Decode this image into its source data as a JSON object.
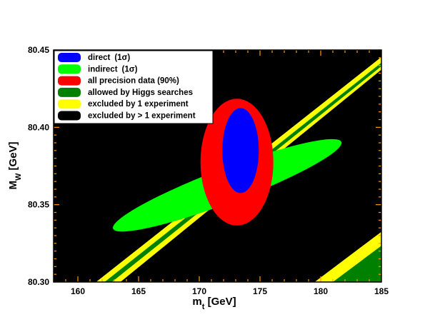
{
  "chart_data": {
    "type": "scatter",
    "title": "",
    "xlabel": "m",
    "xlabel_sub": "t",
    "xlabel_unit": " [GeV]",
    "ylabel": "M",
    "ylabel_sub": "W",
    "ylabel_unit": " [GeV]",
    "xlim": [
      158,
      185
    ],
    "ylim": [
      80.3,
      80.45
    ],
    "x_ticks": [
      160,
      165,
      170,
      175,
      180,
      185
    ],
    "x_tick_labels": [
      "160",
      "165",
      "170",
      "175",
      "180",
      "185"
    ],
    "y_ticks": [
      80.3,
      80.35,
      80.4,
      80.45
    ],
    "y_tick_labels": [
      "80.30",
      "80.35",
      "80.40",
      "80.45"
    ],
    "background_color": "#000000",
    "legend_position": "top-left",
    "legend": [
      {
        "name": "direct",
        "suffix": "(1σ)",
        "color": "#0000ff"
      },
      {
        "name": "indirect",
        "suffix": "(1σ)",
        "color": "#00ff00"
      },
      {
        "name": "all precision data (90%)",
        "suffix": "",
        "color": "#ff0000"
      },
      {
        "name": "allowed by Higgs searches",
        "suffix": "",
        "color": "#008000"
      },
      {
        "name": "excluded by 1 experiment",
        "suffix": "",
        "color": "#ffff00"
      },
      {
        "name": "excluded by > 1 experiment",
        "suffix": "",
        "color": "#000000"
      }
    ],
    "band_upper": {
      "outer_left": [
        [
          161.5,
          80.3
        ],
        [
          185,
          80.4455
        ]
      ],
      "green_left": [
        [
          162.2,
          80.3
        ],
        [
          185,
          80.4418
        ]
      ],
      "green_right": [
        [
          162.8,
          80.3
        ],
        [
          185,
          80.4395
        ]
      ],
      "outer_right": [
        [
          163.5,
          80.3
        ],
        [
          185,
          80.4373
        ]
      ]
    },
    "band_lower": {
      "yellow_edge": [
        [
          179.5,
          80.3
        ],
        [
          185,
          80.3325
        ]
      ],
      "green_edge": [
        [
          181.0,
          80.3
        ],
        [
          185,
          80.3235
        ]
      ]
    },
    "ellipses": [
      {
        "name": "indirect",
        "center": [
          172.3,
          80.3625
        ],
        "semi_major": 11.5,
        "semi_minor": 1.65,
        "angle_deg": 20.8,
        "color": "#00ff00"
      },
      {
        "name": "all precision data (90%)",
        "center": [
          173.1,
          80.3775
        ],
        "semi_major": 0.041,
        "semi_minor": 3.0,
        "angle_deg": 0,
        "color": "#ff0000",
        "axes": "x_half_width_3.0_y_half_height_0.041"
      },
      {
        "name": "direct",
        "center": [
          173.4,
          80.385
        ],
        "semi_major": 0.0275,
        "semi_minor": 1.5,
        "angle_deg": 0,
        "color": "#0000ff",
        "axes": "x_half_width_1.5_y_half_height_0.0275"
      }
    ]
  }
}
